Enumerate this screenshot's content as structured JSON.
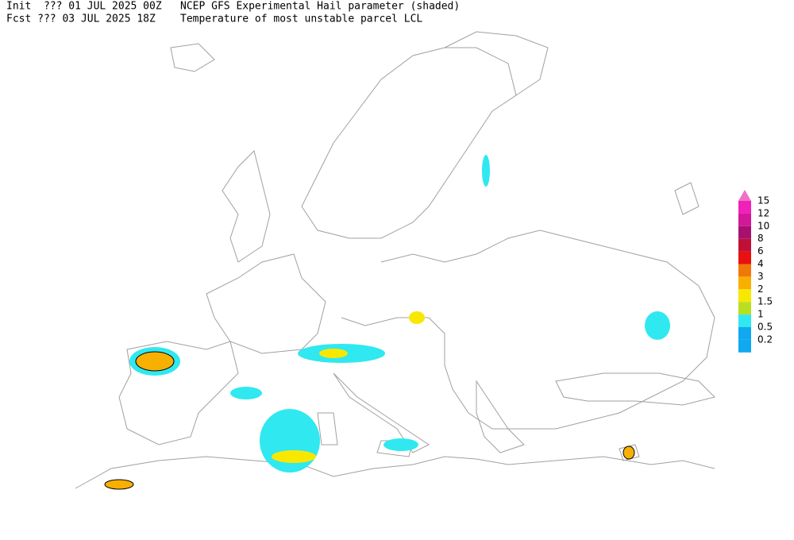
{
  "header": {
    "init": "Init  ??? 01 JUL 2025 00Z",
    "fcst": "Fcst ??? 03 JUL 2025 18Z",
    "title": "NCEP GFS Experimental Hail parameter (shaded)",
    "subtitle": "Temperature of most unstable parcel LCL"
  },
  "legend": {
    "triangle_color": "#f070c8",
    "labels": [
      15,
      12,
      10,
      8,
      6,
      4,
      3,
      2,
      1.5,
      1,
      0.5,
      0.2
    ],
    "colors": [
      "#f020b8",
      "#d01898",
      "#a81070",
      "#c01038",
      "#e81010",
      "#f07808",
      "#f8b000",
      "#f8e800",
      "#b8e020",
      "#30e8f0",
      "#10a8f0",
      "#10a8f0"
    ]
  }
}
